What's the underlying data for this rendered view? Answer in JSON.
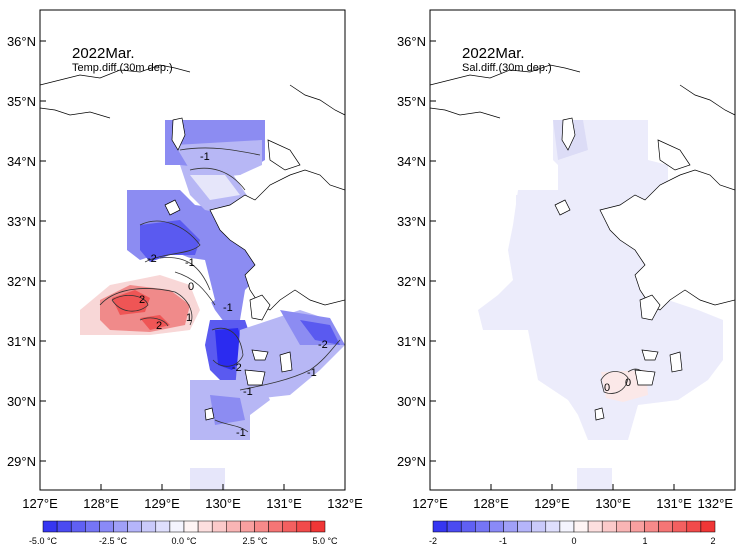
{
  "maps": [
    {
      "id": "temp",
      "title_line1": "2022Mar.",
      "title_line2": "Temp.diff.(30m dep.)",
      "contour_labels": [
        "-1",
        "-2",
        "-1",
        "0",
        "2",
        "2",
        "1",
        "-1",
        "-2",
        "-2",
        "-1",
        "-1",
        "-1"
      ],
      "colorbar_labels": [
        "-5.0 °C",
        "-2.5 °C",
        "0.0 °C",
        "2.5 °C",
        "5.0 °C"
      ]
    },
    {
      "id": "sal",
      "title_line1": "2022Mar.",
      "title_line2": "Sal.diff.(30m dep.)",
      "contour_labels": [
        "0",
        "0"
      ],
      "colorbar_labels": [
        "-2",
        "-1",
        "0",
        "1",
        "2"
      ]
    }
  ],
  "axes": {
    "lat_labels": [
      "36°N",
      "35°N",
      "34°N",
      "33°N",
      "32°N",
      "31°N",
      "30°N",
      "29°N"
    ],
    "lon_labels": [
      "127°E",
      "128°E",
      "129°E",
      "130°E",
      "131°E",
      "132°E"
    ]
  },
  "colors": {
    "strong_negative": "#2b2bf0",
    "mid_negative": "#8c8cf2",
    "light_negative": "#e6e6fa",
    "neutral": "#ffffff",
    "light_positive": "#f8d7d7",
    "mid_positive": "#f08a8a",
    "strong_positive": "#ef2b2b"
  },
  "colorbar_steps": 20
}
